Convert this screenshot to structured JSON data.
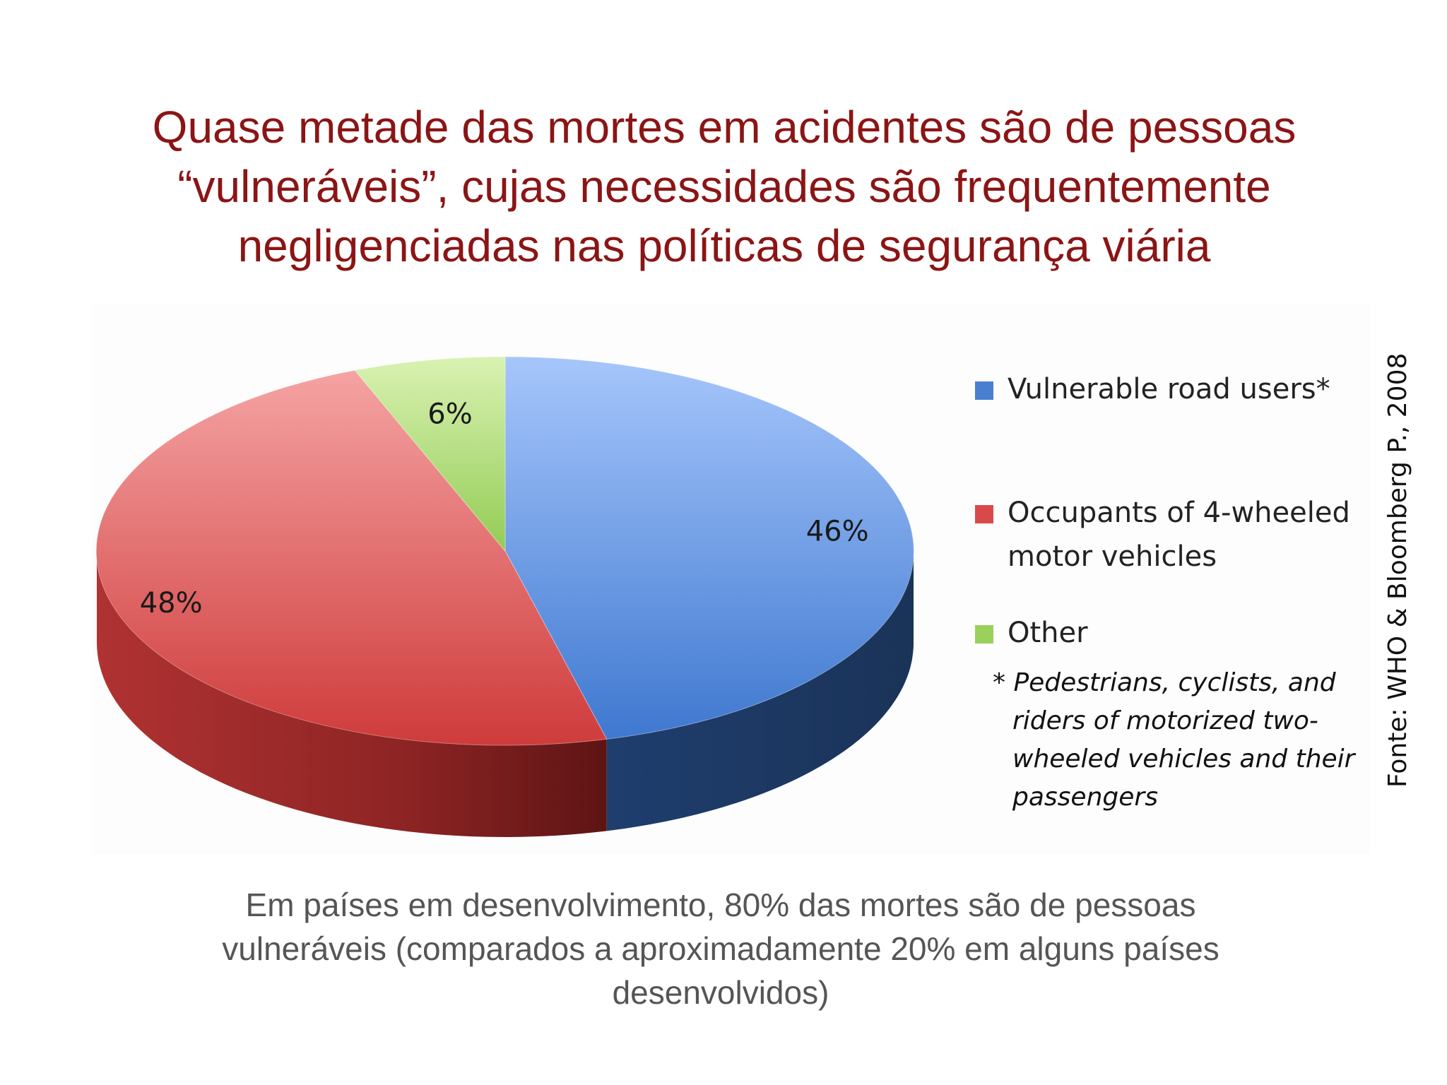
{
  "title": {
    "lines": [
      "Quase metade das mortes em acidentes são de pessoas",
      "“vulneráveis”, cujas necessidades são frequentemente",
      "negligenciadas nas políticas de segurança viária"
    ],
    "color": "#8b1515"
  },
  "chart_data": {
    "type": "pie",
    "style": "3d",
    "slices": [
      {
        "label": "Vulnerable road users*",
        "value": 46,
        "display": "46%",
        "color": "#5b8fd8"
      },
      {
        "label": "Occupants of 4-wheeled motor vehicles",
        "value": 48,
        "display": "48%",
        "color": "#e05454"
      },
      {
        "label": "Other",
        "value": 6,
        "display": "6%",
        "color": "#a8d86e"
      }
    ],
    "legend": {
      "position": "right",
      "items": [
        {
          "lines": [
            "Vulnerable road users*"
          ],
          "color": "#4a7fd0"
        },
        {
          "lines": [
            "Occupants of 4-wheeled",
            "motor vehicles"
          ],
          "color": "#d84a4a"
        },
        {
          "lines": [
            "Other"
          ],
          "color": "#9bd05c"
        }
      ]
    },
    "footnote": {
      "lines": [
        "* Pedestrians, cyclists, and",
        "riders of motorized two-",
        "wheeled vehicles and their",
        "passengers"
      ]
    }
  },
  "source": "Fonte: WHO & Bloomberg P., 2008",
  "bottom_text": {
    "lines": [
      "Em países em desenvolvimento, 80% das mortes são de pessoas",
      "vulneráveis (comparados a aproximadamente 20% em alguns países",
      "desenvolvidos)"
    ]
  }
}
